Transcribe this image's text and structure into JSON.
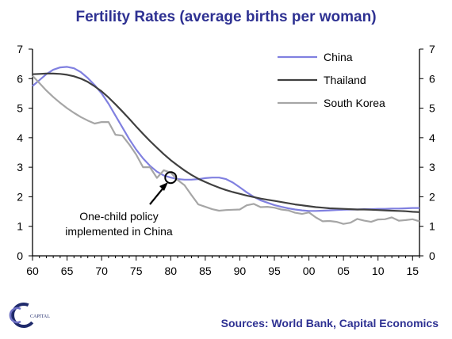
{
  "colors": {
    "title": "#2e3192",
    "source": "#2e3192",
    "axis": "#000000",
    "china": "#8080e0",
    "thailand": "#404040",
    "south_korea": "#a6a6a6",
    "logo": "#1f2a6b"
  },
  "logo": {
    "text": "CAPITAL",
    "icon": "capital-economics-logo-icon"
  },
  "source_text": "Sources: World Bank, Capital Economics",
  "chart_data": {
    "type": "line",
    "title": "Fertility Rates (average births per woman)",
    "xlabel": "",
    "ylabel": "",
    "xlim": [
      1960,
      2016
    ],
    "ylim": [
      0,
      7
    ],
    "x_tick_labels": [
      "60",
      "65",
      "70",
      "75",
      "80",
      "85",
      "90",
      "95",
      "00",
      "05",
      "10",
      "15"
    ],
    "y_tick_labels": [
      "0",
      "1",
      "2",
      "3",
      "4",
      "5",
      "6",
      "7"
    ],
    "grid": false,
    "legend_position": "top-right",
    "series": [
      {
        "name": "China",
        "color_key": "china",
        "x": [
          1960,
          1961,
          1962,
          1963,
          1964,
          1965,
          1966,
          1967,
          1968,
          1969,
          1970,
          1971,
          1972,
          1973,
          1974,
          1975,
          1976,
          1977,
          1978,
          1979,
          1980,
          1981,
          1982,
          1983,
          1984,
          1985,
          1986,
          1987,
          1988,
          1989,
          1990,
          1991,
          1992,
          1993,
          1994,
          1995,
          1996,
          1997,
          1998,
          1999,
          2000,
          2001,
          2002,
          2003,
          2004,
          2005,
          2006,
          2007,
          2008,
          2009,
          2010,
          2011,
          2012,
          2013,
          2014,
          2015,
          2016
        ],
        "values": [
          5.75,
          5.95,
          6.15,
          6.3,
          6.38,
          6.4,
          6.35,
          6.22,
          6.02,
          5.78,
          5.5,
          5.15,
          4.75,
          4.35,
          3.95,
          3.6,
          3.3,
          3.05,
          2.85,
          2.72,
          2.65,
          2.6,
          2.58,
          2.58,
          2.6,
          2.63,
          2.65,
          2.65,
          2.6,
          2.48,
          2.32,
          2.15,
          2.0,
          1.88,
          1.8,
          1.72,
          1.66,
          1.61,
          1.57,
          1.54,
          1.52,
          1.52,
          1.53,
          1.54,
          1.55,
          1.56,
          1.57,
          1.57,
          1.58,
          1.58,
          1.59,
          1.59,
          1.6,
          1.6,
          1.61,
          1.62,
          1.62
        ]
      },
      {
        "name": "Thailand",
        "color_key": "thailand",
        "x": [
          1960,
          1961,
          1962,
          1963,
          1964,
          1965,
          1966,
          1967,
          1968,
          1969,
          1970,
          1971,
          1972,
          1973,
          1974,
          1975,
          1976,
          1977,
          1978,
          1979,
          1980,
          1981,
          1982,
          1983,
          1984,
          1985,
          1986,
          1987,
          1988,
          1989,
          1990,
          1991,
          1992,
          1993,
          1994,
          1995,
          1996,
          1997,
          1998,
          1999,
          2000,
          2001,
          2002,
          2003,
          2004,
          2005,
          2006,
          2007,
          2008,
          2009,
          2010,
          2011,
          2012,
          2013,
          2014,
          2015,
          2016
        ],
        "values": [
          6.15,
          6.16,
          6.17,
          6.17,
          6.16,
          6.13,
          6.08,
          6.0,
          5.89,
          5.74,
          5.57,
          5.36,
          5.13,
          4.89,
          4.64,
          4.38,
          4.13,
          3.89,
          3.66,
          3.44,
          3.24,
          3.06,
          2.89,
          2.74,
          2.61,
          2.5,
          2.4,
          2.31,
          2.23,
          2.16,
          2.1,
          2.04,
          1.99,
          1.94,
          1.9,
          1.86,
          1.82,
          1.78,
          1.74,
          1.71,
          1.68,
          1.65,
          1.63,
          1.61,
          1.6,
          1.59,
          1.58,
          1.57,
          1.57,
          1.56,
          1.55,
          1.54,
          1.53,
          1.52,
          1.51,
          1.49,
          1.48
        ]
      },
      {
        "name": "South Korea",
        "color_key": "south_korea",
        "x": [
          1960,
          1961,
          1962,
          1963,
          1964,
          1965,
          1966,
          1967,
          1968,
          1969,
          1970,
          1971,
          1972,
          1973,
          1974,
          1975,
          1976,
          1977,
          1978,
          1979,
          1980,
          1981,
          1982,
          1983,
          1984,
          1985,
          1986,
          1987,
          1988,
          1989,
          1990,
          1991,
          1992,
          1993,
          1994,
          1995,
          1996,
          1997,
          1998,
          1999,
          2000,
          2001,
          2002,
          2003,
          2004,
          2005,
          2006,
          2007,
          2008,
          2009,
          2010,
          2011,
          2012,
          2013,
          2014,
          2015,
          2016
        ],
        "values": [
          6.1,
          5.85,
          5.6,
          5.38,
          5.18,
          5.0,
          4.84,
          4.7,
          4.58,
          4.48,
          4.53,
          4.53,
          4.1,
          4.07,
          3.77,
          3.43,
          3.0,
          3.0,
          2.64,
          2.9,
          2.82,
          2.57,
          2.39,
          2.06,
          1.74,
          1.66,
          1.58,
          1.53,
          1.55,
          1.56,
          1.57,
          1.71,
          1.76,
          1.65,
          1.66,
          1.63,
          1.57,
          1.54,
          1.46,
          1.42,
          1.47,
          1.3,
          1.17,
          1.18,
          1.15,
          1.08,
          1.12,
          1.25,
          1.19,
          1.15,
          1.23,
          1.24,
          1.3,
          1.19,
          1.21,
          1.24,
          1.17
        ]
      }
    ],
    "annotation": {
      "lines": [
        "One-child policy",
        "implemented in China"
      ],
      "x": 1980,
      "y": 2.65
    }
  }
}
